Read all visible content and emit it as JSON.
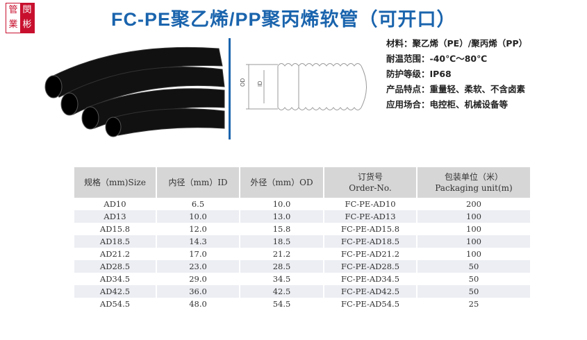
{
  "logo": {
    "chars": [
      "管",
      "閔",
      "業",
      "彬"
    ]
  },
  "title": "FC-PE聚乙烯/PP聚丙烯软管（可开口）",
  "diagram": {
    "od_label": "OD",
    "id_label": "ID"
  },
  "specs": [
    {
      "label": "材料：",
      "value": "聚乙烯（PE）/聚丙烯（PP）"
    },
    {
      "label": "耐温范围：",
      "value": "-40℃～80℃"
    },
    {
      "label": "防护等级：",
      "value": "IP68"
    },
    {
      "label": "产品特点：",
      "value": "重量轻、柔软、不含卤素"
    },
    {
      "label": "应用场合：",
      "value": "电控柜、机械设备等"
    }
  ],
  "colors": {
    "title": "#1a64ad",
    "logo": "#c8102e"
  },
  "table": {
    "headers": [
      [
        "规格（mm)Size",
        ""
      ],
      [
        "内径（mm）ID",
        ""
      ],
      [
        "外径（mm）OD",
        ""
      ],
      [
        "订货号",
        "Order-No."
      ],
      [
        "包装单位（米）",
        "Packaging unit(m)"
      ]
    ],
    "rows": [
      [
        "AD10",
        "6.5",
        "10.0",
        "FC-PE-AD10",
        "200"
      ],
      [
        "AD13",
        "10.0",
        "13.0",
        "FC-PE-AD13",
        "100"
      ],
      [
        "AD15.8",
        "12.0",
        "15.8",
        "FC-PE-AD15.8",
        "100"
      ],
      [
        "AD18.5",
        "14.3",
        "18.5",
        "FC-PE-AD18.5",
        "100"
      ],
      [
        "AD21.2",
        "17.0",
        "21.2",
        "FC-PE-AD21.2",
        "100"
      ],
      [
        "AD28.5",
        "23.0",
        "28.5",
        "FC-PE-AD28.5",
        "50"
      ],
      [
        "AD34.5",
        "29.0",
        "34.5",
        "FC-PE-AD34.5",
        "50"
      ],
      [
        "AD42.5",
        "36.0",
        "42.5",
        "FC-PE-AD42.5",
        "50"
      ],
      [
        "AD54.5",
        "48.0",
        "54.5",
        "FC-PE-AD54.5",
        "25"
      ]
    ]
  }
}
